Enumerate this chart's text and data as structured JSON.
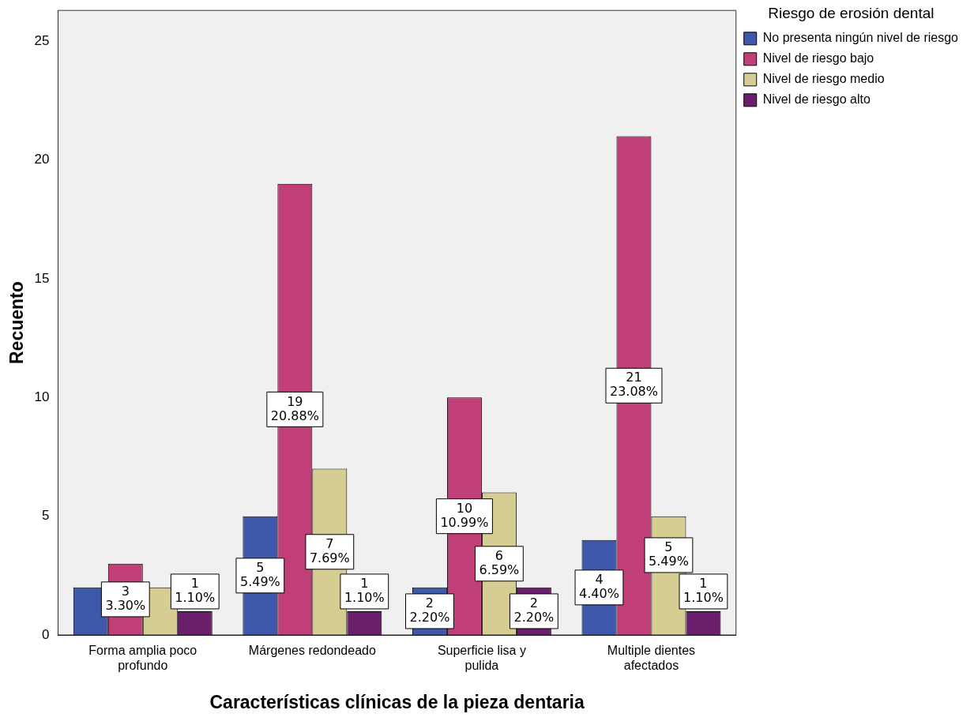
{
  "chart_data": {
    "type": "bar",
    "xlabel": "Características clínicas de la pieza dentaria",
    "ylabel": "Recuento",
    "legend_title": "Riesgo de erosión dental",
    "legend": "top right",
    "grid": false,
    "categories": [
      "Forma amplia poco profundo",
      "Márgenes redondeado",
      "Superficie lisa y pulida",
      "Multiple dientes afectados"
    ],
    "ylim": [
      0,
      26.3
    ],
    "yticks": [
      0,
      5,
      10,
      15,
      20,
      25
    ],
    "series": [
      {
        "name": "No presenta ningún nivel de riesgo",
        "color": "#3e58ac",
        "values": [
          2,
          5,
          2,
          4
        ],
        "value_labels": [
          null,
          "5\n5.49%",
          "2\n2.20%",
          "4\n4.40%"
        ]
      },
      {
        "name": "Nivel de riesgo bajo",
        "color": "#c13f78",
        "values": [
          3,
          19,
          10,
          21
        ],
        "value_labels": [
          "3\n3.30%",
          "19\n20.88%",
          "10\n10.99%",
          "21\n23.08%"
        ]
      },
      {
        "name": "Nivel de riesgo medio",
        "color": "#d6cd93",
        "values": [
          2,
          7,
          6,
          5
        ],
        "value_labels": [
          null,
          "7\n7.69%",
          "6\n6.59%",
          "5\n5.49%"
        ]
      },
      {
        "name": "Nivel de riesgo alto",
        "color": "#6b1f6b",
        "values": [
          1,
          1,
          2,
          1
        ],
        "value_labels": [
          "1\n1.10%",
          "1\n1.10%",
          "2\n2.20%",
          "1\n1.10%"
        ]
      }
    ]
  }
}
